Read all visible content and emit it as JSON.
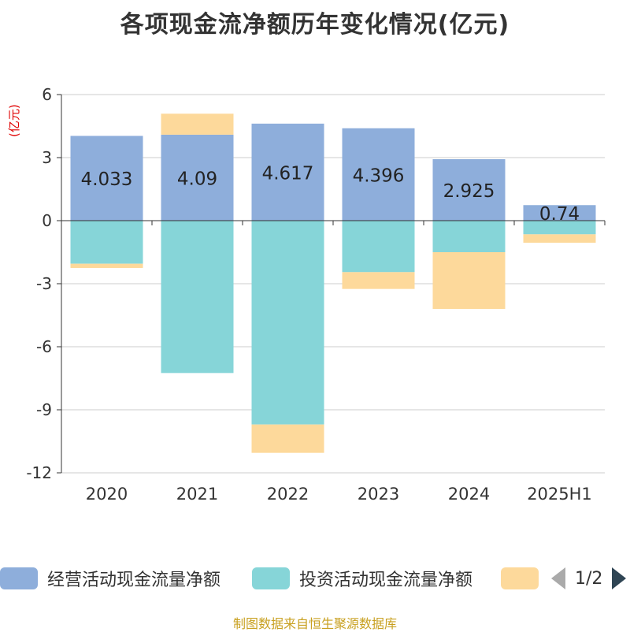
{
  "title": "各项现金流净额历年变化情况(亿元)",
  "y_unit": "(亿元)",
  "source": "制图数据来自恒生聚源数据库",
  "legend": {
    "page": "1/2",
    "items": [
      {
        "label": "经营活动现金流量净额",
        "color": "#8eaedb"
      },
      {
        "label": "投资活动现金流量净额",
        "color": "#86d5d8"
      },
      {
        "label": "",
        "color": "#fdd99b"
      }
    ]
  },
  "chart_data": {
    "type": "bar",
    "stacked": true,
    "categories": [
      "2020",
      "2021",
      "2022",
      "2023",
      "2024",
      "2025H1"
    ],
    "ylim": [
      -12,
      6
    ],
    "yticks": [
      6,
      3,
      0,
      -3,
      -6,
      -9,
      -12
    ],
    "grid": true,
    "legend_position": "bottom",
    "series": [
      {
        "name": "经营活动现金流量净额",
        "color": "#8eaedb",
        "values": [
          4.033,
          4.09,
          4.617,
          4.396,
          2.925,
          0.74
        ],
        "labels": [
          "4.033",
          "4.09",
          "4.617",
          "4.396",
          "2.925",
          "0.74"
        ]
      },
      {
        "name": "投资活动现金流量净额",
        "color": "#86d5d8",
        "values": [
          -2.05,
          -7.25,
          -9.7,
          -2.45,
          -1.5,
          -0.65
        ]
      },
      {
        "color": "#fdd99b",
        "values": [
          -0.2,
          1.0,
          -1.35,
          -0.8,
          -2.7,
          -0.4
        ]
      }
    ]
  }
}
